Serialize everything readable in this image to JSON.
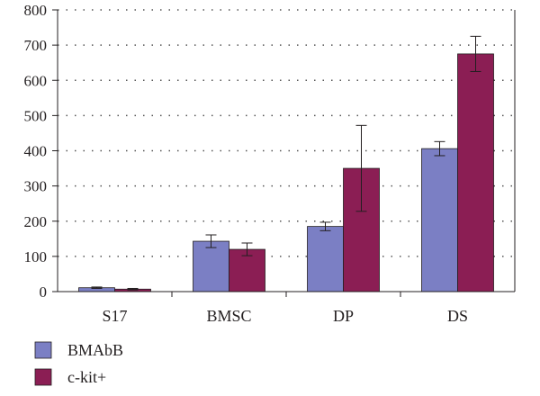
{
  "chart_data": {
    "type": "bar",
    "categories": [
      "S17",
      "BMSC",
      "DP",
      "DS"
    ],
    "series": [
      {
        "name": "BMAbB",
        "values": [
          11,
          143,
          185,
          406
        ],
        "errors": [
          2,
          18,
          12,
          20
        ]
      },
      {
        "name": "c-kit+",
        "values": [
          7,
          120,
          350,
          675
        ],
        "errors": [
          2,
          18,
          122,
          50
        ]
      }
    ],
    "ylim": [
      0,
      800
    ],
    "yticks": [
      "0",
      "100",
      "200",
      "300",
      "400",
      "500",
      "600",
      "700",
      "800"
    ],
    "grid": true,
    "legend_position": "bottom-left",
    "colors": {
      "BMAbB": "#7b7fc4",
      "c-kit+": "#8b1e54",
      "axis": "#231f20",
      "grid": "#555555"
    }
  }
}
